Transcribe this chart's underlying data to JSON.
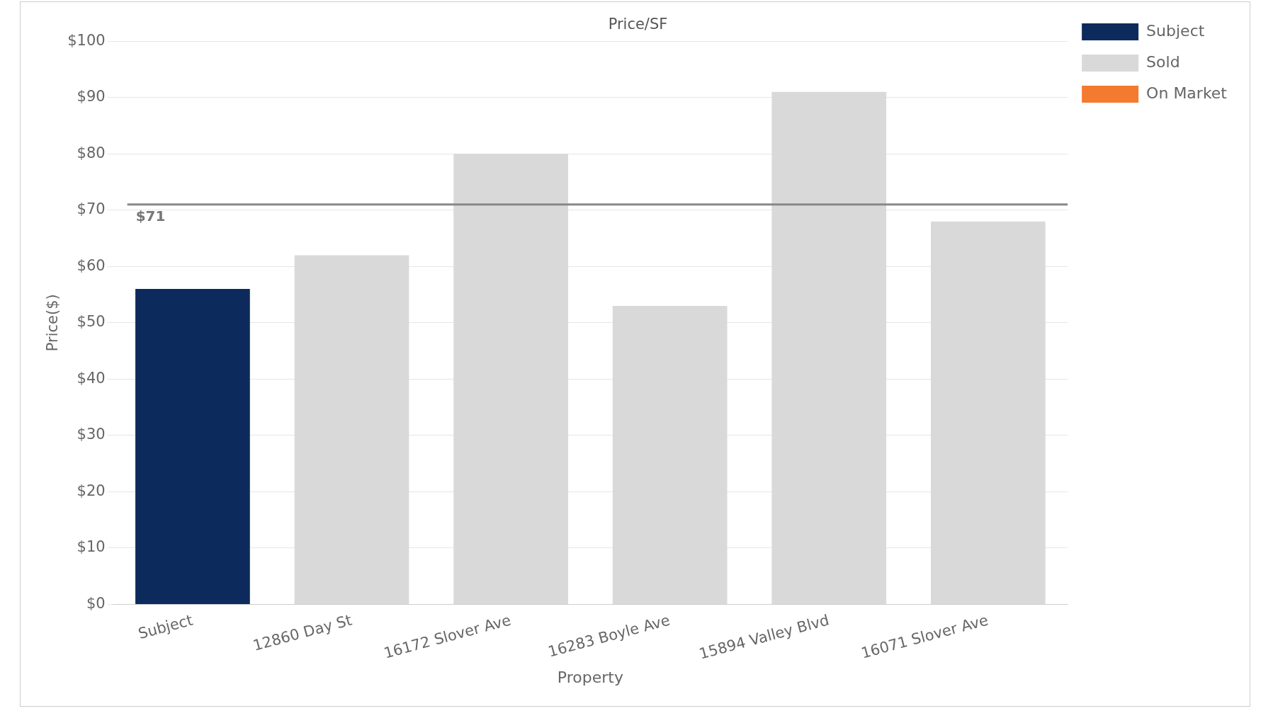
{
  "chart_data": {
    "type": "bar",
    "title": "Price/SF",
    "xlabel": "Property",
    "ylabel": "Price($)",
    "categories": [
      "Subject",
      "12860 Day St",
      "16172 Slover Ave",
      "16283 Boyle Ave",
      "15894 Valley Blvd",
      "16071 Slover Ave"
    ],
    "series": [
      {
        "name": "Subject",
        "color": "#0d2a5c",
        "values": [
          56,
          null,
          null,
          null,
          null,
          null
        ]
      },
      {
        "name": "Sold",
        "color": "#d9d9d9",
        "values": [
          null,
          62,
          80,
          53,
          91,
          68
        ]
      },
      {
        "name": "On Market",
        "color": "#f47a30",
        "values": [
          null,
          null,
          null,
          null,
          null,
          null
        ]
      }
    ],
    "ylim": [
      0,
      100
    ],
    "yticks": [
      {
        "value": 0,
        "label": "$0"
      },
      {
        "value": 10,
        "label": "$10"
      },
      {
        "value": 20,
        "label": "$20"
      },
      {
        "value": 30,
        "label": "$30"
      },
      {
        "value": 40,
        "label": "$40"
      },
      {
        "value": 50,
        "label": "$50"
      },
      {
        "value": 60,
        "label": "$60"
      },
      {
        "value": 70,
        "label": "$70"
      },
      {
        "value": 80,
        "label": "$80"
      },
      {
        "value": 90,
        "label": "$90"
      },
      {
        "value": 100,
        "label": "$100"
      }
    ],
    "ref_lines": [
      {
        "axis": "y",
        "value": 71,
        "label": "$71",
        "color": "#888888"
      }
    ],
    "grid": "y",
    "legend": "top right"
  }
}
